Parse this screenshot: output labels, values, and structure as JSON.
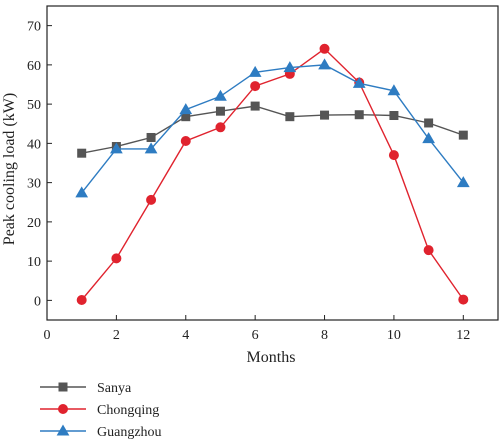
{
  "chart_data": {
    "type": "line",
    "title": "",
    "xlabel": "Months",
    "ylabel": "Peak cooling load (kW)",
    "xlim": [
      0,
      13
    ],
    "ylim": [
      -5,
      75
    ],
    "x_ticks": [
      0,
      2,
      4,
      6,
      8,
      10,
      12
    ],
    "y_ticks": [
      0,
      10,
      20,
      30,
      40,
      50,
      60,
      70
    ],
    "grid": false,
    "legend_position": "bottom-left, below plot",
    "x": [
      1,
      2,
      3,
      4,
      5,
      6,
      7,
      8,
      9,
      10,
      11,
      12
    ],
    "series": [
      {
        "name": "Sanya",
        "color": "#555555",
        "marker": "square",
        "values": [
          37.5,
          39.2,
          41.5,
          46.8,
          48.2,
          49.5,
          46.8,
          47.2,
          47.3,
          47.1,
          45.2,
          42.1
        ]
      },
      {
        "name": "Chongqing",
        "color": "#e0232e",
        "marker": "circle",
        "values": [
          0.1,
          10.7,
          25.6,
          40.6,
          44.1,
          54.6,
          57.7,
          64.1,
          55.5,
          37.0,
          12.8,
          0.2
        ]
      },
      {
        "name": "Guangzhou",
        "color": "#2e7cc2",
        "marker": "triangle",
        "values": [
          27.4,
          38.6,
          38.6,
          48.6,
          52.0,
          58.1,
          59.3,
          60.0,
          55.3,
          53.4,
          41.2,
          30.0
        ]
      }
    ]
  }
}
